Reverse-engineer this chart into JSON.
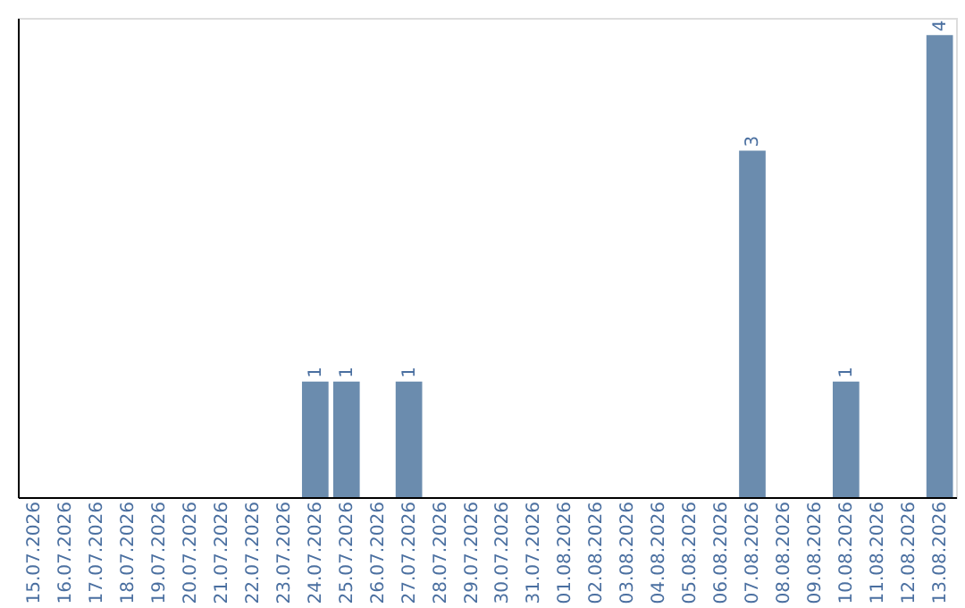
{
  "chart_data": {
    "type": "bar",
    "categories": [
      "15.07.2026",
      "16.07.2026",
      "17.07.2026",
      "18.07.2026",
      "19.07.2026",
      "20.07.2026",
      "21.07.2026",
      "22.07.2026",
      "23.07.2026",
      "24.07.2026",
      "25.07.2026",
      "26.07.2026",
      "27.07.2026",
      "28.07.2026",
      "29.07.2026",
      "30.07.2026",
      "31.07.2026",
      "01.08.2026",
      "02.08.2026",
      "03.08.2026",
      "04.08.2026",
      "05.08.2026",
      "06.08.2026",
      "07.08.2026",
      "08.08.2026",
      "09.08.2026",
      "10.08.2026",
      "11.08.2026",
      "12.08.2026",
      "13.08.2026"
    ],
    "values": [
      0,
      0,
      0,
      0,
      0,
      0,
      0,
      0,
      0,
      1,
      1,
      0,
      1,
      0,
      0,
      0,
      0,
      0,
      0,
      0,
      0,
      0,
      0,
      3,
      0,
      0,
      1,
      0,
      0,
      4
    ],
    "value_labels": [
      null,
      null,
      null,
      null,
      null,
      null,
      null,
      null,
      null,
      "1",
      "1",
      null,
      "1",
      null,
      null,
      null,
      null,
      null,
      null,
      null,
      null,
      null,
      null,
      "3",
      null,
      null,
      "1",
      null,
      null,
      "4"
    ],
    "color": "#6b8cae",
    "ylim": [
      0,
      4.15
    ],
    "grid": false,
    "tick_labels": "x"
  }
}
